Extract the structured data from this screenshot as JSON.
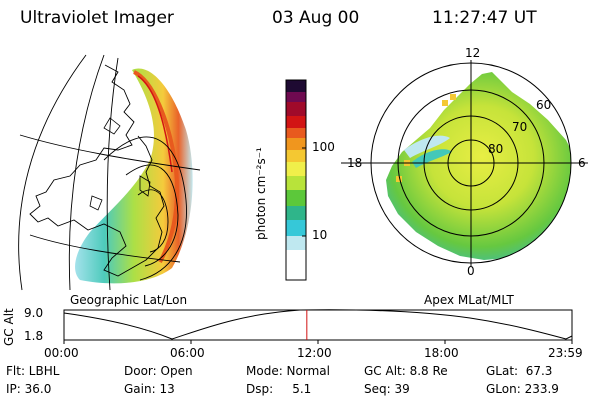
{
  "header": {
    "instrument": "Ultraviolet Imager",
    "date": "03 Aug 00",
    "time": "11:27:47 UT"
  },
  "left_panel": {
    "caption": "Geographic Lat/Lon"
  },
  "right_panel": {
    "caption": "Apex MLat/MLT",
    "mlt_labels": {
      "top": "12",
      "left": "18",
      "right": "6",
      "bottom": "0"
    },
    "mlat_labels": [
      "60",
      "70",
      "80"
    ]
  },
  "colorbar": {
    "unit_label": "photon cm⁻²s⁻¹",
    "ticks": [
      "100",
      "10"
    ],
    "scale": "log",
    "colors": [
      "#ffffff",
      "#bfe8f0",
      "#36c8d8",
      "#2fb58a",
      "#5cc83a",
      "#b8e33a",
      "#f0ef4a",
      "#f4c832",
      "#f0961e",
      "#e85a1e",
      "#d21414",
      "#a00a2a",
      "#6e0a50",
      "#1e0a32"
    ]
  },
  "altitude_plot": {
    "y_label": "GC Alt",
    "y_ticks": [
      "9.0",
      "1.8"
    ],
    "x_ticks": [
      "00:00",
      "06:00",
      "12:00",
      "18:00",
      "23:59"
    ],
    "marker_time_fraction": 0.478,
    "marker_color": "#d01010"
  },
  "footer": {
    "row1": [
      "Flt: LBHL",
      "Door: Open",
      "Mode: Normal",
      "GC Alt: 8.8 Re",
      "GLat:  67.3"
    ],
    "row2": [
      "IP: 36.0",
      "Gain: 13",
      "Dsp:     5.1",
      "Seq: 39",
      "GLon: 233.9"
    ]
  }
}
